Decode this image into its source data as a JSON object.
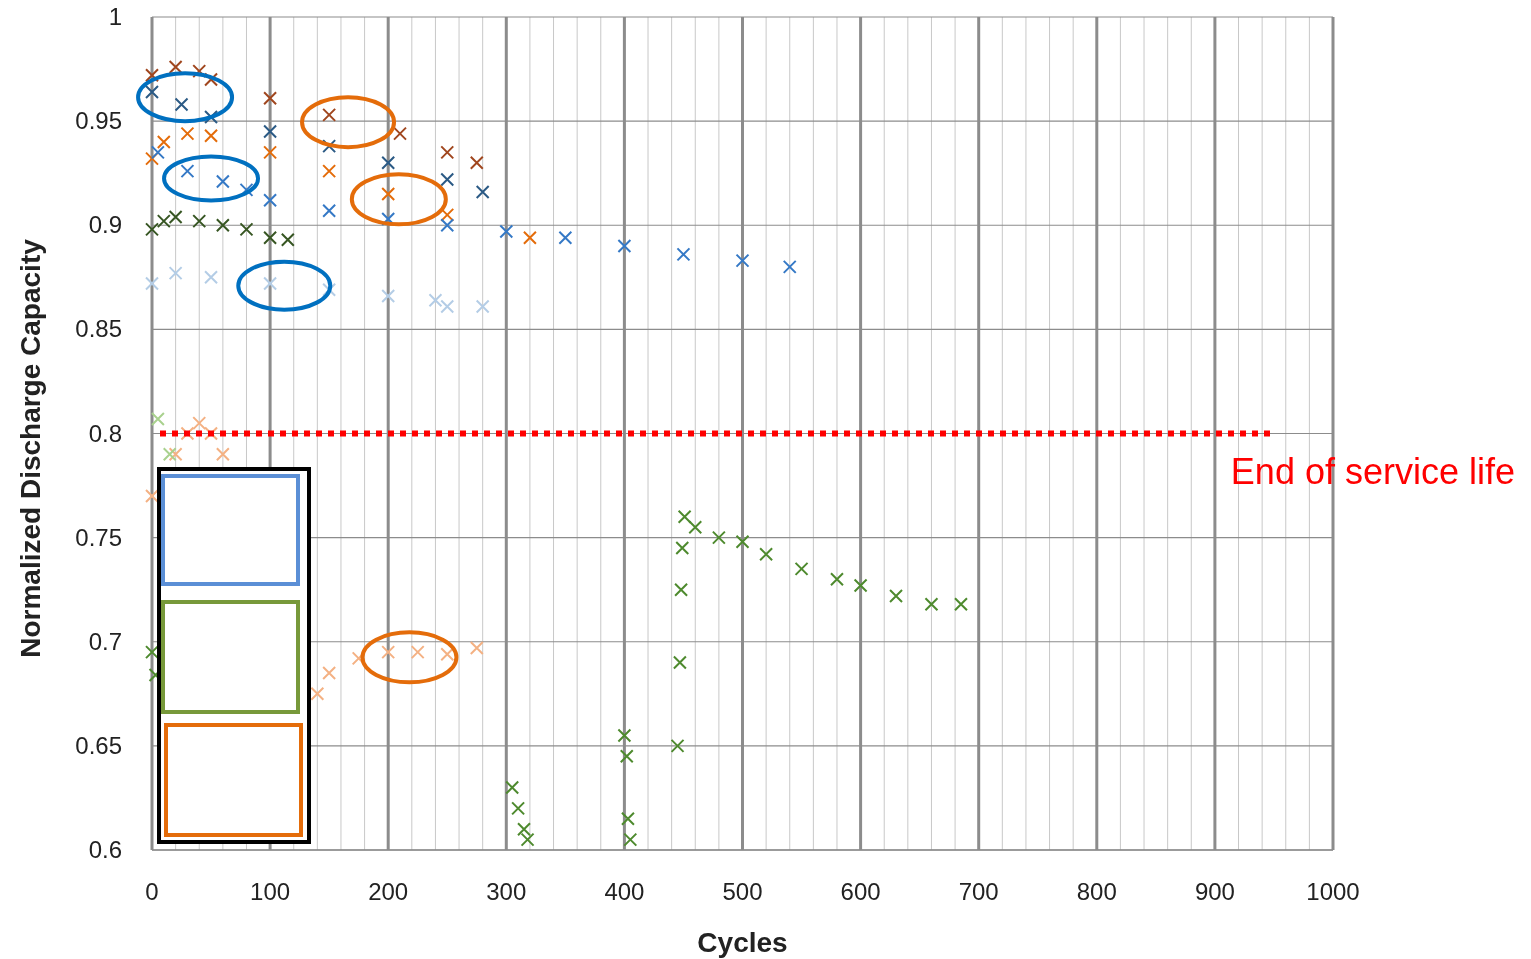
{
  "chart_data": {
    "type": "scatter",
    "xlabel": "Cycles",
    "ylabel": "Normalized Discharge Capacity",
    "xlim": [
      0,
      1000
    ],
    "xticks": [
      0,
      100,
      200,
      300,
      400,
      500,
      600,
      700,
      800,
      900,
      1000
    ],
    "ylim": [
      0.6,
      1
    ],
    "yticks": [
      0.6,
      0.65,
      0.7,
      0.75,
      0.8,
      0.85,
      0.9,
      0.95,
      1
    ],
    "grid": true,
    "marker": "cross",
    "ref_lines": [
      {
        "axis": "y",
        "value": 0.8,
        "label": "End of service life",
        "color": "#ff0000",
        "line_style": "dotted"
      }
    ],
    "series": [
      {
        "color": "#a0461e",
        "x": [
          0,
          20,
          40,
          50,
          100,
          150,
          210,
          250,
          275
        ],
        "values": [
          0.972,
          0.976,
          0.974,
          0.97,
          0.961,
          0.953,
          0.944,
          0.935,
          0.93
        ]
      },
      {
        "color": "#2b5a85",
        "x": [
          0,
          25,
          50,
          100,
          150,
          200,
          250,
          280
        ],
        "values": [
          0.964,
          0.958,
          0.952,
          0.945,
          0.938,
          0.93,
          0.922,
          0.916
        ]
      },
      {
        "color": "#e46c0a",
        "x": [
          0,
          10,
          30,
          50,
          100,
          150,
          200,
          250,
          320
        ],
        "values": [
          0.932,
          0.94,
          0.944,
          0.943,
          0.935,
          0.926,
          0.915,
          0.905,
          0.894
        ]
      },
      {
        "color": "#3579c6",
        "x": [
          5,
          30,
          60,
          80,
          100,
          150,
          200,
          250,
          300,
          350,
          400,
          450,
          500,
          540
        ],
        "values": [
          0.935,
          0.926,
          0.921,
          0.917,
          0.912,
          0.907,
          0.903,
          0.9,
          0.897,
          0.894,
          0.89,
          0.886,
          0.883,
          0.88
        ]
      },
      {
        "color": "#375623",
        "x": [
          0,
          10,
          20,
          40,
          60,
          80,
          100,
          115
        ],
        "values": [
          0.898,
          0.902,
          0.904,
          0.902,
          0.9,
          0.898,
          0.894,
          0.893
        ]
      },
      {
        "color": "#b4cde6",
        "x": [
          0,
          20,
          50,
          100,
          150,
          200,
          240,
          250,
          280
        ],
        "values": [
          0.872,
          0.877,
          0.875,
          0.872,
          0.869,
          0.866,
          0.864,
          0.861,
          0.861
        ]
      },
      {
        "color": "#f4b183",
        "x": [
          0,
          20,
          30,
          40,
          50,
          60,
          140,
          150,
          175,
          200,
          225,
          250,
          275
        ],
        "values": [
          0.77,
          0.79,
          0.8,
          0.805,
          0.8,
          0.79,
          0.675,
          0.685,
          0.692,
          0.695,
          0.695,
          0.694,
          0.697
        ]
      },
      {
        "color": "#a9d18e",
        "x": [
          5,
          15
        ],
        "values": [
          0.807,
          0.79
        ]
      },
      {
        "color": "#4e8a2e",
        "x": [
          0,
          3,
          305,
          310,
          315,
          318,
          400,
          402,
          403,
          405,
          445,
          447,
          448,
          449,
          451,
          460,
          480,
          500,
          520,
          550,
          580,
          600,
          630,
          660,
          685
        ],
        "values": [
          0.695,
          0.684,
          0.63,
          0.62,
          0.61,
          0.605,
          0.655,
          0.645,
          0.615,
          0.605,
          0.65,
          0.69,
          0.725,
          0.745,
          0.76,
          0.755,
          0.75,
          0.748,
          0.742,
          0.735,
          0.73,
          0.727,
          0.722,
          0.718,
          0.718
        ]
      }
    ]
  }
}
